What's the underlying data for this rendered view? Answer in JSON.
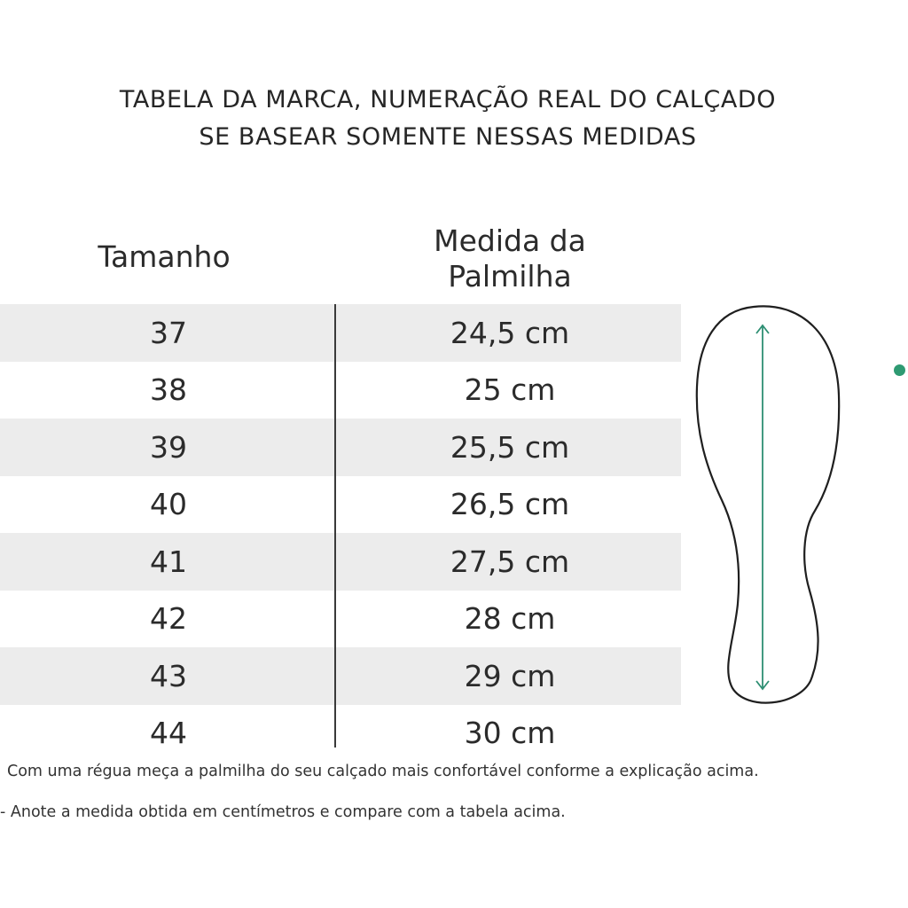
{
  "heading": {
    "line1": "TABELA DA MARCA, NUMERAÇÃO REAL DO CALÇADO",
    "line2": "SE BASEAR SOMENTE NESSAS MEDIDAS"
  },
  "table": {
    "size_header": "Tamanho",
    "insole_header_line1": "Medida da",
    "insole_header_line2": "Palmilha",
    "rows": [
      {
        "size": "37",
        "insole": "24,5 cm"
      },
      {
        "size": "38",
        "insole": "25 cm"
      },
      {
        "size": "39",
        "insole": "25,5 cm"
      },
      {
        "size": "40",
        "insole": "26,5 cm"
      },
      {
        "size": "41",
        "insole": "27,5 cm"
      },
      {
        "size": "42",
        "insole": "28 cm"
      },
      {
        "size": "43",
        "insole": "29 cm"
      },
      {
        "size": "44",
        "insole": "30 cm"
      }
    ]
  },
  "illustration": {
    "icon": "insole-outline-icon",
    "arrow_icon": "double-arrow-icon",
    "outline_color": "#1f1f1f",
    "arrow_color": "#2e8f73",
    "dot_color": "#2e9a72"
  },
  "notes": {
    "line1": "Com uma régua meça a palmilha do seu calçado mais confortável conforme a explicação acima.",
    "line2": "- Anote a medida obtida em centímetros e compare com a tabela acima."
  }
}
